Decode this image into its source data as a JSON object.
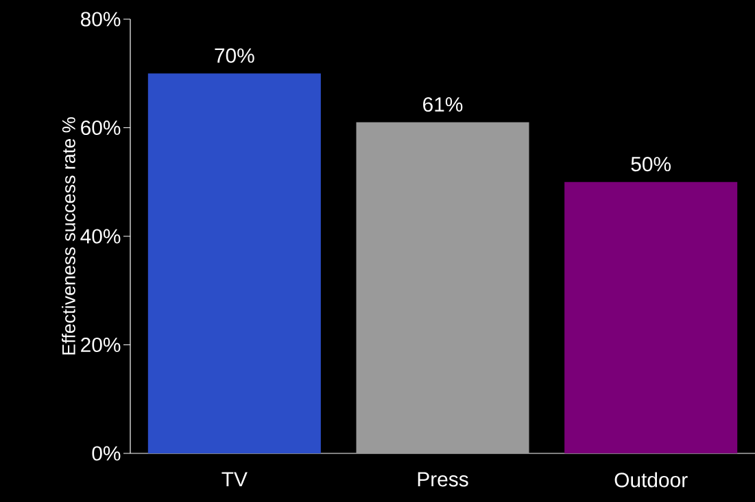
{
  "chart_data": {
    "type": "bar",
    "ylabel": "Effectiveness success rate %",
    "categories": [
      "TV",
      "Press",
      "Outdoor"
    ],
    "values": [
      70,
      61,
      50
    ],
    "colors": [
      "#2c4ec8",
      "#9a9a9a",
      "#7a0078"
    ],
    "value_labels": [
      "70%",
      "61%",
      "50%"
    ],
    "ylim": [
      0,
      80
    ],
    "yticks": [
      {
        "value": 0,
        "label": "0%"
      },
      {
        "value": 20,
        "label": "20%"
      },
      {
        "value": 40,
        "label": "40%"
      },
      {
        "value": 60,
        "label": "60%"
      },
      {
        "value": 80,
        "label": "80%"
      }
    ],
    "grid": false
  }
}
